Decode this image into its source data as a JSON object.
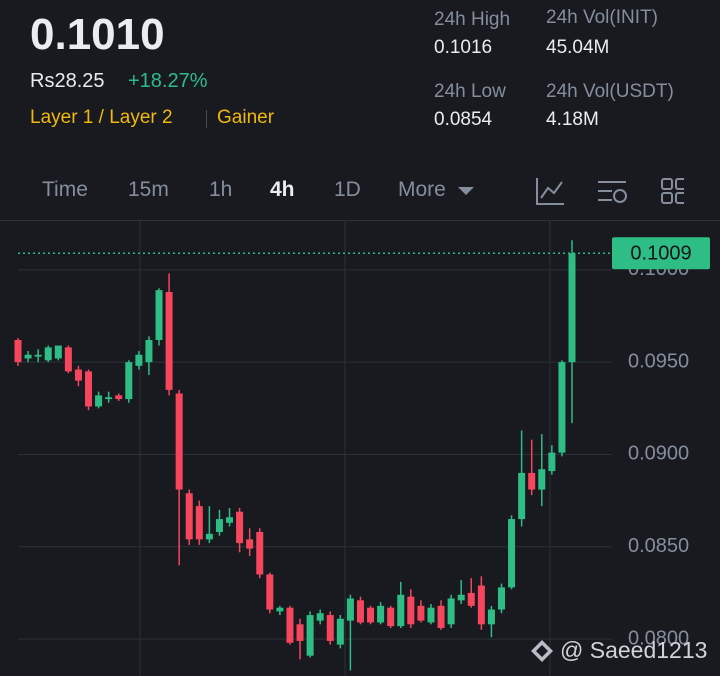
{
  "header": {
    "price": "0.1010",
    "fiat": "Rs28.25",
    "change": "+18.27%",
    "tags": [
      "Layer 1 / Layer 2",
      "Gainer"
    ],
    "stats": [
      {
        "label": "24h High",
        "value": "0.1016"
      },
      {
        "label": "24h Vol(INIT)",
        "value": "45.04M"
      },
      {
        "label": "24h Low",
        "value": "0.0854"
      },
      {
        "label": "24h Vol(USDT)",
        "value": "4.18M"
      }
    ]
  },
  "tabs": [
    "Time",
    "15m",
    "1h",
    "4h",
    "1D",
    "More"
  ],
  "watermark": "@ Saeed1213",
  "chart_data": {
    "type": "candlestick",
    "open": [
      0.0962,
      0.0952,
      0.0953,
      0.0951,
      0.0952,
      0.0958,
      0.0946,
      0.0945,
      0.0926,
      0.093,
      0.0932,
      0.093,
      0.0948,
      0.095,
      0.0962,
      0.0988,
      0.0933,
      0.0879,
      0.0872,
      0.0854,
      0.0858,
      0.0863,
      0.0869,
      0.0854,
      0.0858,
      0.0835,
      0.0815,
      0.0817,
      0.0808,
      0.0791,
      0.081,
      0.0813,
      0.0797,
      0.081,
      0.0821,
      0.0817,
      0.0809,
      0.0817,
      0.0807,
      0.0823,
      0.0818,
      0.0809,
      0.0818,
      0.0808,
      0.0821,
      0.0825,
      0.0829,
      0.0808,
      0.0816,
      0.0828,
      0.0865,
      0.089,
      0.0881,
      0.0891,
      0.0901,
      0.095
    ],
    "high": [
      0.0963,
      0.0956,
      0.0957,
      0.0959,
      0.0959,
      0.0959,
      0.0948,
      0.0946,
      0.0934,
      0.0934,
      0.0933,
      0.0951,
      0.0956,
      0.0964,
      0.099,
      0.0998,
      0.0935,
      0.0881,
      0.0875,
      0.0872,
      0.087,
      0.0871,
      0.0871,
      0.086,
      0.086,
      0.0836,
      0.0818,
      0.0818,
      0.0811,
      0.0815,
      0.0816,
      0.0815,
      0.0813,
      0.0824,
      0.0823,
      0.0818,
      0.082,
      0.0818,
      0.0831,
      0.0827,
      0.0821,
      0.0819,
      0.0821,
      0.0824,
      0.0832,
      0.0833,
      0.0834,
      0.0818,
      0.083,
      0.0867,
      0.0913,
      0.0908,
      0.0911,
      0.0905,
      0.0951,
      0.1016
    ],
    "low": [
      0.0948,
      0.095,
      0.095,
      0.095,
      0.0951,
      0.0944,
      0.0937,
      0.0924,
      0.0925,
      0.0928,
      0.0929,
      0.0928,
      0.0946,
      0.0943,
      0.0959,
      0.0932,
      0.084,
      0.0851,
      0.0851,
      0.0852,
      0.0856,
      0.0861,
      0.0847,
      0.0845,
      0.0833,
      0.0814,
      0.0813,
      0.0797,
      0.0789,
      0.079,
      0.0808,
      0.0797,
      0.0795,
      0.0783,
      0.0808,
      0.0808,
      0.0808,
      0.0806,
      0.0806,
      0.0806,
      0.0809,
      0.0808,
      0.0805,
      0.0806,
      0.0819,
      0.0817,
      0.0805,
      0.0801,
      0.0814,
      0.0827,
      0.0861,
      0.0878,
      0.0872,
      0.0889,
      0.0899,
      0.0917
    ],
    "close": [
      0.095,
      0.0954,
      0.0954,
      0.0958,
      0.0959,
      0.0945,
      0.094,
      0.0926,
      0.0932,
      0.0931,
      0.093,
      0.095,
      0.0954,
      0.0962,
      0.0989,
      0.0935,
      0.0881,
      0.0854,
      0.0854,
      0.0857,
      0.0865,
      0.0866,
      0.0852,
      0.0849,
      0.0835,
      0.0816,
      0.0817,
      0.0798,
      0.0799,
      0.0813,
      0.0814,
      0.0799,
      0.0811,
      0.0822,
      0.0809,
      0.0809,
      0.0818,
      0.0807,
      0.0824,
      0.0808,
      0.081,
      0.0817,
      0.0806,
      0.0822,
      0.0824,
      0.0818,
      0.0808,
      0.0816,
      0.0828,
      0.0865,
      0.089,
      0.0881,
      0.0892,
      0.0901,
      0.095,
      0.1009
    ],
    "up_color": "#2ebd85",
    "down_color": "#f6465d",
    "ylim": [
      0.078,
      0.1027
    ],
    "yticks": [
      {
        "value": 0.08,
        "label": "0.0800"
      },
      {
        "value": 0.085,
        "label": "0.0850"
      },
      {
        "value": 0.09,
        "label": "0.0900"
      },
      {
        "value": 0.095,
        "label": "0.0950"
      },
      {
        "value": 0.1,
        "label": "0.1000"
      }
    ],
    "grid": true,
    "last_price": 0.1009
  }
}
